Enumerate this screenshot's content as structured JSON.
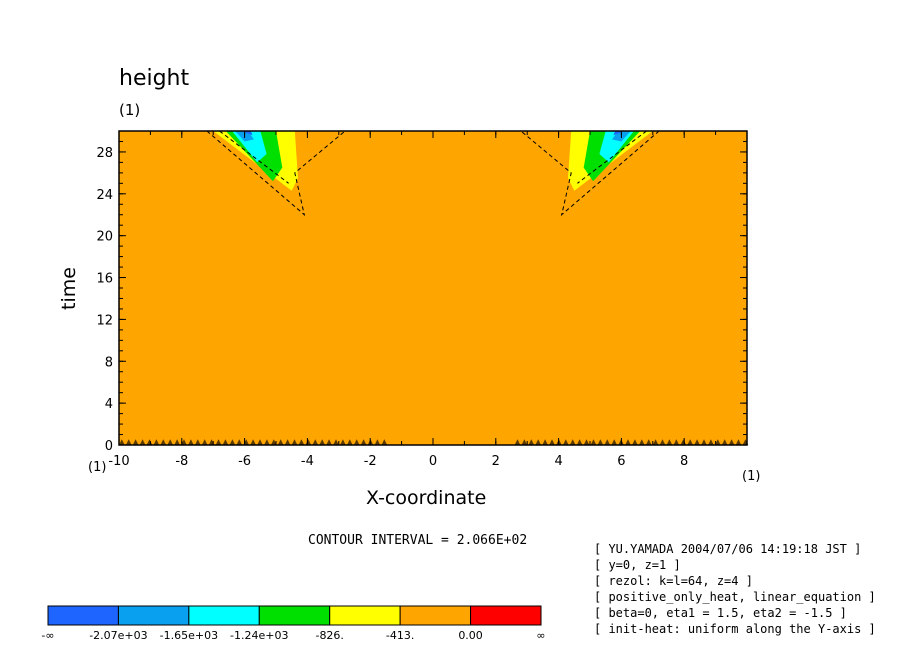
{
  "chart_data": {
    "type": "heatmap",
    "title": "height",
    "title_unit": "(1)",
    "xlabel": "X-coordinate",
    "ylabel": "time",
    "x_unit_left": "(1)",
    "x_unit_right": "(1)",
    "xlim": [
      -10,
      10
    ],
    "ylim": [
      0,
      30
    ],
    "xticks": [
      "-10",
      "-8",
      "-6",
      "-4",
      "-2",
      "0",
      "2",
      "4",
      "6",
      "8"
    ],
    "xtick_values": [
      -10,
      -8,
      -6,
      -4,
      -2,
      0,
      2,
      4,
      6,
      8
    ],
    "yticks": [
      "0",
      "4",
      "8",
      "12",
      "16",
      "20",
      "24",
      "28"
    ],
    "ytick_values": [
      0,
      4,
      8,
      12,
      16,
      20,
      24,
      28
    ],
    "background_level_color": "#ffa500",
    "contour_interval": "CONTOUR INTERVAL = 2.066E+02",
    "colorbar": {
      "colors": [
        "#1e64ff",
        "#0aa0f0",
        "#00ffff",
        "#00e000",
        "#ffff00",
        "#ffa500",
        "#ff0000"
      ],
      "labels": [
        "-∞",
        "-2.07e+03",
        "-1.65e+03",
        "-1.24e+03",
        "-826.",
        "-413.",
        "0.00",
        "∞"
      ]
    },
    "features": [
      {
        "x_range": [
          -7,
          -4
        ],
        "t_range": [
          22,
          30
        ],
        "min_level": "-2.07e+03"
      },
      {
        "x_range": [
          4,
          7
        ],
        "t_range": [
          22,
          30
        ],
        "min_level": "-2.07e+03"
      }
    ]
  },
  "info_lines": [
    "[ YU.YAMADA 2004/07/06 14:19:18 JST ]",
    "[ y=0, z=1 ]",
    "[ rezol: k=l=64, z=4 ]",
    "[ positive_only_heat, linear_equation ]",
    "[ beta=0, eta1 = 1.5, eta2 = -1.5 ]",
    "[ init-heat: uniform along the Y-axis ]"
  ]
}
